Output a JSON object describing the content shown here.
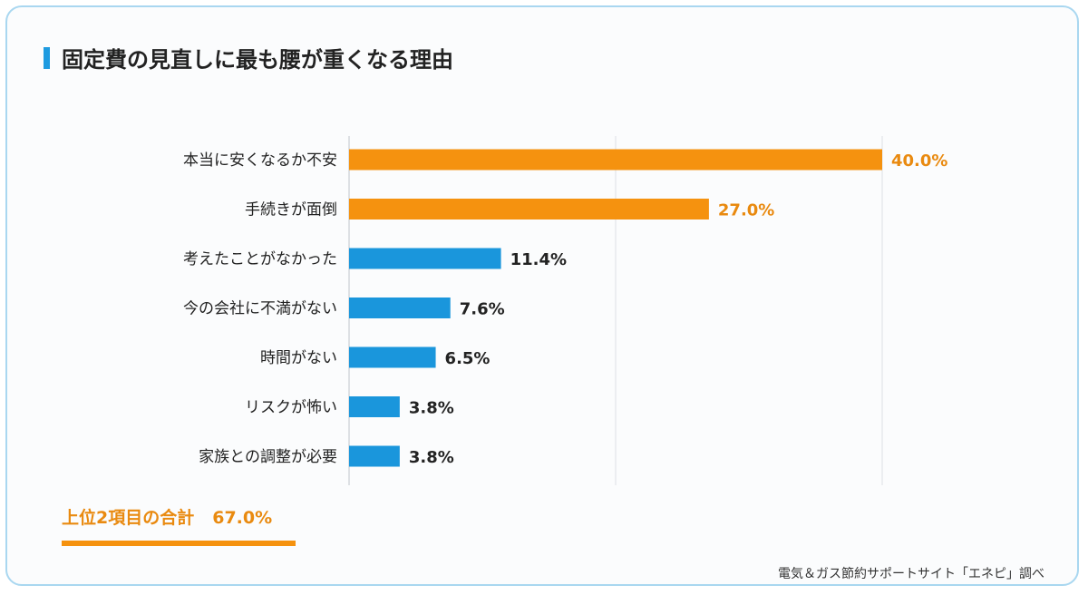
{
  "title": "固定費の見直しに最も腰が重くなる理由",
  "summary": {
    "label": "上位2項目の合計",
    "value": "67.0%"
  },
  "source": "電気＆ガス節約サポートサイト「エネピ」調べ",
  "colors": {
    "highlight": "#f5920f",
    "normal": "#1a96dc",
    "highlight_text": "#e98a10",
    "accent": "#1e9be0"
  },
  "chart_data": {
    "type": "bar",
    "orientation": "horizontal",
    "categories": [
      "本当に安くなるか不安",
      "手続きが面倒",
      "考えたことがなかった",
      "今の会社に不満がない",
      "時間がない",
      "リスクが怖い",
      "家族との調整が必要"
    ],
    "values": [
      40.0,
      27.0,
      11.4,
      7.6,
      6.5,
      3.8,
      3.8
    ],
    "value_labels": [
      "40.0%",
      "27.0%",
      "11.4%",
      "7.6%",
      "6.5%",
      "3.8%",
      "3.8%"
    ],
    "highlighted": [
      true,
      true,
      false,
      false,
      false,
      false,
      false
    ],
    "xlim": [
      0,
      40
    ],
    "grid": true
  }
}
